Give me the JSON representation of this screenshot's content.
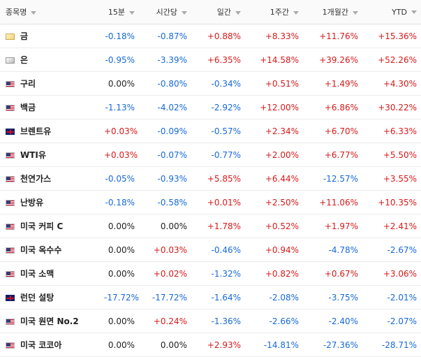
{
  "header": {
    "name": "종목명",
    "m15": "15분",
    "hourly": "시간당",
    "daily": "일간",
    "weekly": "1주간",
    "monthly": "1개월간",
    "ytd": "YTD"
  },
  "rows": [
    {
      "flag": "gold-icon",
      "name": "금",
      "m15": "-0.18%",
      "hourly": "-0.87%",
      "daily": "+0.88%",
      "weekly": "+8.33%",
      "monthly": "+11.76%",
      "ytd": "+15.36%"
    },
    {
      "flag": "silver-icon",
      "name": "은",
      "m15": "-0.95%",
      "hourly": "-3.39%",
      "daily": "+6.35%",
      "weekly": "+14.58%",
      "monthly": "+39.26%",
      "ytd": "+52.26%"
    },
    {
      "flag": "us-flag-icon",
      "name": "구리",
      "m15": "0.00%",
      "hourly": "-0.80%",
      "daily": "-0.34%",
      "weekly": "+0.51%",
      "monthly": "+1.49%",
      "ytd": "+4.30%"
    },
    {
      "flag": "us-flag-icon",
      "name": "백금",
      "m15": "-1.13%",
      "hourly": "-4.02%",
      "daily": "-2.92%",
      "weekly": "+12.00%",
      "monthly": "+6.86%",
      "ytd": "+30.22%"
    },
    {
      "flag": "uk-flag-icon",
      "name": "브렌트유",
      "m15": "+0.03%",
      "hourly": "-0.09%",
      "daily": "-0.57%",
      "weekly": "+2.34%",
      "monthly": "+6.70%",
      "ytd": "+6.33%"
    },
    {
      "flag": "us-flag-icon",
      "name": "WTI유",
      "m15": "+0.03%",
      "hourly": "-0.07%",
      "daily": "-0.77%",
      "weekly": "+2.00%",
      "monthly": "+6.77%",
      "ytd": "+5.50%"
    },
    {
      "flag": "us-flag-icon",
      "name": "천연가스",
      "m15": "-0.05%",
      "hourly": "-0.93%",
      "daily": "+5.85%",
      "weekly": "+6.44%",
      "monthly": "-12.57%",
      "ytd": "+3.55%"
    },
    {
      "flag": "us-flag-icon",
      "name": "난방유",
      "m15": "-0.18%",
      "hourly": "-0.58%",
      "daily": "+0.01%",
      "weekly": "+2.50%",
      "monthly": "+11.06%",
      "ytd": "+10.35%"
    },
    {
      "flag": "us-flag-icon",
      "name": "미국 커피 C",
      "m15": "0.00%",
      "hourly": "0.00%",
      "daily": "+1.78%",
      "weekly": "+0.52%",
      "monthly": "+1.97%",
      "ytd": "+2.41%"
    },
    {
      "flag": "us-flag-icon",
      "name": "미국 옥수수",
      "m15": "0.00%",
      "hourly": "+0.03%",
      "daily": "-0.46%",
      "weekly": "+0.94%",
      "monthly": "-4.78%",
      "ytd": "-2.67%"
    },
    {
      "flag": "us-flag-icon",
      "name": "미국 소맥",
      "m15": "0.00%",
      "hourly": "+0.02%",
      "daily": "-1.32%",
      "weekly": "+0.82%",
      "monthly": "+0.67%",
      "ytd": "+3.06%"
    },
    {
      "flag": "uk-flag-icon",
      "name": "런던 설탕",
      "m15": "-17.72%",
      "hourly": "-17.72%",
      "daily": "-1.64%",
      "weekly": "-2.08%",
      "monthly": "-3.75%",
      "ytd": "-2.01%"
    },
    {
      "flag": "us-flag-icon",
      "name": "미국 원면 No.2",
      "m15": "0.00%",
      "hourly": "+0.24%",
      "daily": "-1.36%",
      "weekly": "-2.66%",
      "monthly": "-2.40%",
      "ytd": "-2.07%"
    },
    {
      "flag": "us-flag-icon",
      "name": "미국 코코아",
      "m15": "0.00%",
      "hourly": "0.00%",
      "daily": "+2.93%",
      "weekly": "-14.81%",
      "monthly": "-27.36%",
      "ytd": "-28.71%"
    }
  ],
  "colors": {
    "positive": "#d61a1a",
    "negative": "#1769d8",
    "neutral": "#222222"
  }
}
